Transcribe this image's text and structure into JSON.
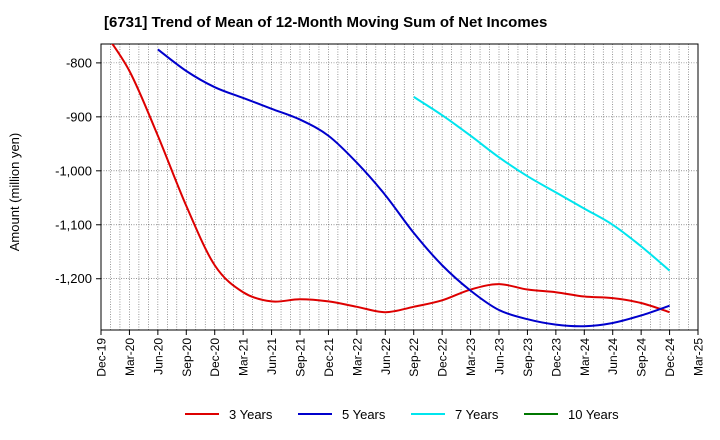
{
  "chart_data": {
    "type": "line",
    "title": "[6731]  Trend of Mean of 12-Month Moving Sum of Net Incomes",
    "xlabel": "",
    "ylabel": "Amount (million yen)",
    "x_ticks": [
      "Dec-19",
      "Mar-20",
      "Jun-20",
      "Sep-20",
      "Dec-20",
      "Mar-21",
      "Jun-21",
      "Sep-21",
      "Dec-21",
      "Mar-22",
      "Jun-22",
      "Sep-22",
      "Dec-22",
      "Mar-23",
      "Jun-23",
      "Sep-23",
      "Dec-23",
      "Mar-24",
      "Jun-24",
      "Sep-24",
      "Dec-24",
      "Mar-25"
    ],
    "y_ticks": [
      -800,
      -900,
      -1000,
      -1100,
      -1200
    ],
    "y_tick_labels": [
      "-800",
      "-900",
      "-1,000",
      "-1,100",
      "-1,200"
    ],
    "ylim": [
      -1295,
      -765
    ],
    "grid": true,
    "legend_position": "bottom",
    "series": [
      {
        "name": "3 Years",
        "color": "#dd0000",
        "values": [
          [
            "Dec-19",
            -735
          ],
          [
            "Mar-20",
            -815
          ],
          [
            "Jun-20",
            -935
          ],
          [
            "Sep-20",
            -1065
          ],
          [
            "Dec-20",
            -1175
          ],
          [
            "Mar-21",
            -1225
          ],
          [
            "Jun-21",
            -1242
          ],
          [
            "Sep-21",
            -1238
          ],
          [
            "Dec-21",
            -1242
          ],
          [
            "Mar-22",
            -1252
          ],
          [
            "Jun-22",
            -1262
          ],
          [
            "Sep-22",
            -1252
          ],
          [
            "Dec-22",
            -1240
          ],
          [
            "Mar-23",
            -1220
          ],
          [
            "Jun-23",
            -1210
          ],
          [
            "Sep-23",
            -1220
          ],
          [
            "Dec-23",
            -1225
          ],
          [
            "Mar-24",
            -1233
          ],
          [
            "Jun-24",
            -1236
          ],
          [
            "Sep-24",
            -1245
          ],
          [
            "Dec-24",
            -1262
          ]
        ]
      },
      {
        "name": "5 Years",
        "color": "#0000cc",
        "values": [
          [
            "Jun-20",
            -775
          ],
          [
            "Sep-20",
            -815
          ],
          [
            "Dec-20",
            -845
          ],
          [
            "Mar-21",
            -865
          ],
          [
            "Jun-21",
            -885
          ],
          [
            "Sep-21",
            -905
          ],
          [
            "Dec-21",
            -935
          ],
          [
            "Mar-22",
            -985
          ],
          [
            "Jun-22",
            -1045
          ],
          [
            "Sep-22",
            -1115
          ],
          [
            "Dec-22",
            -1175
          ],
          [
            "Mar-23",
            -1222
          ],
          [
            "Jun-23",
            -1258
          ],
          [
            "Sep-23",
            -1275
          ],
          [
            "Dec-23",
            -1285
          ],
          [
            "Mar-24",
            -1288
          ],
          [
            "Jun-24",
            -1282
          ],
          [
            "Sep-24",
            -1268
          ],
          [
            "Dec-24",
            -1250
          ]
        ]
      },
      {
        "name": "7 Years",
        "color": "#00e5ee",
        "values": [
          [
            "Sep-22",
            -863
          ],
          [
            "Dec-22",
            -897
          ],
          [
            "Mar-23",
            -935
          ],
          [
            "Jun-23",
            -975
          ],
          [
            "Sep-23",
            -1010
          ],
          [
            "Dec-23",
            -1040
          ],
          [
            "Mar-24",
            -1070
          ],
          [
            "Jun-24",
            -1100
          ],
          [
            "Sep-24",
            -1140
          ],
          [
            "Dec-24",
            -1185
          ]
        ]
      },
      {
        "name": "10 Years",
        "color": "#007700",
        "values": []
      }
    ]
  }
}
